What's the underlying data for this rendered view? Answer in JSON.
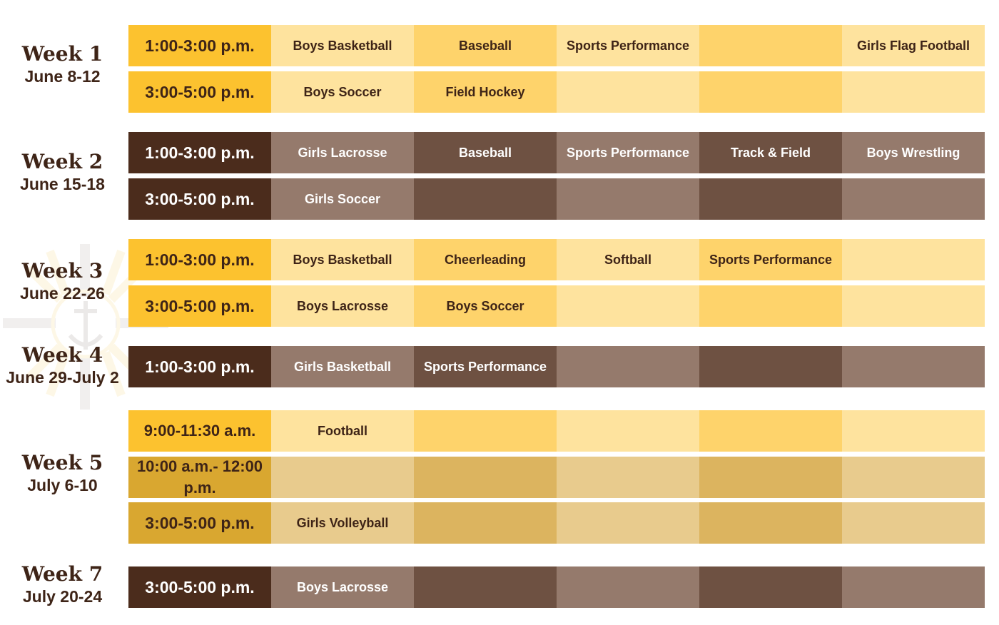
{
  "colors": {
    "gold_time": "#fcc22f",
    "gold_a": "#fee39e",
    "gold_b": "#fed36b",
    "brown_time": "#4b2c1c",
    "brown_a": "#957a6c",
    "brown_b": "#6e5142",
    "tan_time": "#d9a730",
    "tan_a": "#e8cb8d",
    "tan_b": "#dcb45f",
    "dark_text": "#3e2417",
    "light_text": "#ffffff"
  },
  "watermark": {
    "icon": "sunburst-anchor-cross-icon"
  },
  "weeks": [
    {
      "title": "Week 1",
      "dates": "June 8-12"
    },
    {
      "title": "Week 2",
      "dates": "June 15-18"
    },
    {
      "title": "Week 3",
      "dates": "June 22-26"
    },
    {
      "title": "Week 4",
      "dates": "June 29-July 2"
    },
    {
      "title": "Week 5",
      "dates": "July 6-10"
    },
    {
      "title": "Week 7",
      "dates": "July 20-24"
    }
  ],
  "rows": [
    {
      "time": "1:00-3:00 p.m.",
      "theme": "gold",
      "cells": [
        "Boys Basketball",
        "Baseball",
        "Sports Performance",
        "",
        "Girls Flag Football"
      ]
    },
    {
      "time": "3:00-5:00 p.m.",
      "theme": "gold",
      "cells": [
        "Boys Soccer",
        "Field Hockey",
        "",
        "",
        ""
      ]
    },
    {
      "time": "1:00-3:00 p.m.",
      "theme": "brown",
      "cells": [
        "Girls Lacrosse",
        "Baseball",
        "Sports Performance",
        "Track & Field",
        "Boys Wrestling"
      ]
    },
    {
      "time": "3:00-5:00 p.m.",
      "theme": "brown",
      "cells": [
        "Girls Soccer",
        "",
        "",
        "",
        ""
      ]
    },
    {
      "time": "1:00-3:00 p.m.",
      "theme": "gold",
      "cells": [
        "Boys Basketball",
        "Cheerleading",
        "Softball",
        "Sports Performance",
        ""
      ]
    },
    {
      "time": "3:00-5:00 p.m.",
      "theme": "gold",
      "cells": [
        "Boys Lacrosse",
        "Boys Soccer",
        "",
        "",
        ""
      ]
    },
    {
      "time": "1:00-3:00 p.m.",
      "theme": "brown",
      "cells": [
        "Girls Basketball",
        "Sports Performance",
        "",
        "",
        ""
      ]
    },
    {
      "time": "9:00-11:30 a.m.",
      "theme": "gold",
      "cells": [
        "Football",
        "",
        "",
        "",
        ""
      ]
    },
    {
      "time": "10:00 a.m.- 12:00  p.m.",
      "theme": "tan",
      "cells": [
        "",
        "",
        "",
        "",
        ""
      ]
    },
    {
      "time": "3:00-5:00 p.m.",
      "theme": "tan",
      "cells": [
        "Girls Volleyball",
        "",
        "",
        "",
        ""
      ]
    },
    {
      "time": "3:00-5:00 p.m.",
      "theme": "brown",
      "cells": [
        "Boys Lacrosse",
        "",
        "",
        "",
        ""
      ]
    }
  ]
}
